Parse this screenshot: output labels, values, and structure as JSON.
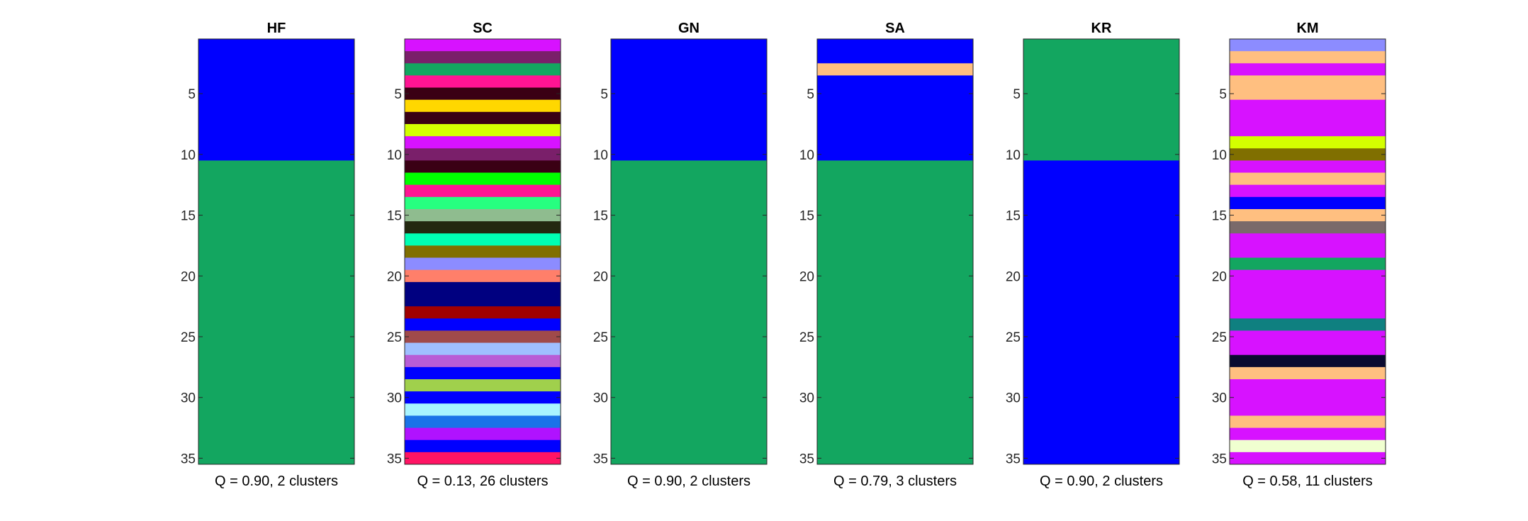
{
  "chart_data": [
    {
      "type": "heatmap",
      "title": "HF",
      "caption": "Q = 0.90, 2 clusters",
      "ylim": [
        0.5,
        35.5
      ],
      "yticks": [
        5,
        10,
        15,
        20,
        25,
        30,
        35
      ],
      "segments": [
        {
          "from": 1,
          "to": 10,
          "color": "#0000ff"
        },
        {
          "from": 11,
          "to": 35,
          "color": "#13a660"
        }
      ]
    },
    {
      "type": "heatmap",
      "title": "SC",
      "caption": "Q = 0.13, 26 clusters",
      "ylim": [
        0.5,
        35.5
      ],
      "yticks": [
        5,
        10,
        15,
        20,
        25,
        30,
        35
      ],
      "segments": [
        {
          "from": 1,
          "to": 1,
          "color": "#d712ff"
        },
        {
          "from": 2,
          "to": 2,
          "color": "#7a1f6a"
        },
        {
          "from": 3,
          "to": 3,
          "color": "#13a660"
        },
        {
          "from": 4,
          "to": 4,
          "color": "#ff1493"
        },
        {
          "from": 5,
          "to": 5,
          "color": "#3a0014"
        },
        {
          "from": 6,
          "to": 6,
          "color": "#ffd700"
        },
        {
          "from": 7,
          "to": 7,
          "color": "#3a0014"
        },
        {
          "from": 8,
          "to": 8,
          "color": "#d4ff00"
        },
        {
          "from": 9,
          "to": 9,
          "color": "#d712ff"
        },
        {
          "from": 10,
          "to": 10,
          "color": "#7a1f6a"
        },
        {
          "from": 11,
          "to": 11,
          "color": "#3a0014"
        },
        {
          "from": 12,
          "to": 12,
          "color": "#00ff00"
        },
        {
          "from": 13,
          "to": 13,
          "color": "#ff1493"
        },
        {
          "from": 14,
          "to": 14,
          "color": "#26ff80"
        },
        {
          "from": 15,
          "to": 15,
          "color": "#8fbc8f"
        },
        {
          "from": 16,
          "to": 16,
          "color": "#232810"
        },
        {
          "from": 17,
          "to": 17,
          "color": "#00ffb3"
        },
        {
          "from": 18,
          "to": 18,
          "color": "#806f00"
        },
        {
          "from": 19,
          "to": 19,
          "color": "#8c8cff"
        },
        {
          "from": 20,
          "to": 20,
          "color": "#ff7f6a"
        },
        {
          "from": 21,
          "to": 22,
          "color": "#000080"
        },
        {
          "from": 23,
          "to": 23,
          "color": "#a00000"
        },
        {
          "from": 24,
          "to": 24,
          "color": "#0000ff"
        },
        {
          "from": 25,
          "to": 25,
          "color": "#a04a4a"
        },
        {
          "from": 26,
          "to": 26,
          "color": "#9fbfff"
        },
        {
          "from": 27,
          "to": 27,
          "color": "#b85cd6"
        },
        {
          "from": 28,
          "to": 28,
          "color": "#0000ff"
        },
        {
          "from": 29,
          "to": 29,
          "color": "#a0d04c"
        },
        {
          "from": 30,
          "to": 30,
          "color": "#0000ff"
        },
        {
          "from": 31,
          "to": 31,
          "color": "#a8f4ff"
        },
        {
          "from": 32,
          "to": 32,
          "color": "#1a73e8"
        },
        {
          "from": 33,
          "to": 33,
          "color": "#b012ff"
        },
        {
          "from": 34,
          "to": 34,
          "color": "#0000ff"
        },
        {
          "from": 35,
          "to": 35,
          "color": "#ff1464"
        }
      ]
    },
    {
      "type": "heatmap",
      "title": "GN",
      "caption": "Q = 0.90, 2 clusters",
      "ylim": [
        0.5,
        35.5
      ],
      "yticks": [
        5,
        10,
        15,
        20,
        25,
        30,
        35
      ],
      "segments": [
        {
          "from": 1,
          "to": 10,
          "color": "#0000ff"
        },
        {
          "from": 11,
          "to": 35,
          "color": "#13a660"
        }
      ]
    },
    {
      "type": "heatmap",
      "title": "SA",
      "caption": "Q = 0.79, 3 clusters",
      "ylim": [
        0.5,
        35.5
      ],
      "yticks": [
        5,
        10,
        15,
        20,
        25,
        30,
        35
      ],
      "segments": [
        {
          "from": 1,
          "to": 2,
          "color": "#0000ff"
        },
        {
          "from": 3,
          "to": 3,
          "color": "#ffbf80"
        },
        {
          "from": 4,
          "to": 10,
          "color": "#0000ff"
        },
        {
          "from": 11,
          "to": 35,
          "color": "#13a660"
        }
      ]
    },
    {
      "type": "heatmap",
      "title": "KR",
      "caption": "Q = 0.90, 2 clusters",
      "ylim": [
        0.5,
        35.5
      ],
      "yticks": [
        5,
        10,
        15,
        20,
        25,
        30,
        35
      ],
      "segments": [
        {
          "from": 1,
          "to": 10,
          "color": "#13a660"
        },
        {
          "from": 11,
          "to": 35,
          "color": "#0000ff"
        }
      ]
    },
    {
      "type": "heatmap",
      "title": "KM",
      "caption": "Q = 0.58, 11 clusters",
      "ylim": [
        0.5,
        35.5
      ],
      "yticks": [
        5,
        10,
        15,
        20,
        25,
        30,
        35
      ],
      "segments": [
        {
          "from": 1,
          "to": 1,
          "color": "#8c8cff"
        },
        {
          "from": 2,
          "to": 2,
          "color": "#ffbf80"
        },
        {
          "from": 3,
          "to": 3,
          "color": "#d712ff"
        },
        {
          "from": 4,
          "to": 5,
          "color": "#ffbf80"
        },
        {
          "from": 6,
          "to": 8,
          "color": "#d712ff"
        },
        {
          "from": 9,
          "to": 9,
          "color": "#d4ff00"
        },
        {
          "from": 10,
          "to": 10,
          "color": "#806f00"
        },
        {
          "from": 11,
          "to": 11,
          "color": "#d712ff"
        },
        {
          "from": 12,
          "to": 12,
          "color": "#ffbf80"
        },
        {
          "from": 13,
          "to": 13,
          "color": "#d712ff"
        },
        {
          "from": 14,
          "to": 14,
          "color": "#0000ff"
        },
        {
          "from": 15,
          "to": 15,
          "color": "#ffbf80"
        },
        {
          "from": 16,
          "to": 16,
          "color": "#7a6a6a"
        },
        {
          "from": 17,
          "to": 18,
          "color": "#d712ff"
        },
        {
          "from": 19,
          "to": 19,
          "color": "#13a660"
        },
        {
          "from": 20,
          "to": 23,
          "color": "#d712ff"
        },
        {
          "from": 24,
          "to": 24,
          "color": "#0f8080"
        },
        {
          "from": 25,
          "to": 26,
          "color": "#d712ff"
        },
        {
          "from": 27,
          "to": 27,
          "color": "#0a0a30"
        },
        {
          "from": 28,
          "to": 28,
          "color": "#ffbf80"
        },
        {
          "from": 29,
          "to": 31,
          "color": "#d712ff"
        },
        {
          "from": 32,
          "to": 32,
          "color": "#ffbf80"
        },
        {
          "from": 33,
          "to": 33,
          "color": "#d712ff"
        },
        {
          "from": 34,
          "to": 34,
          "color": "#f0ffd0"
        },
        {
          "from": 35,
          "to": 35,
          "color": "#d712ff"
        }
      ]
    }
  ]
}
